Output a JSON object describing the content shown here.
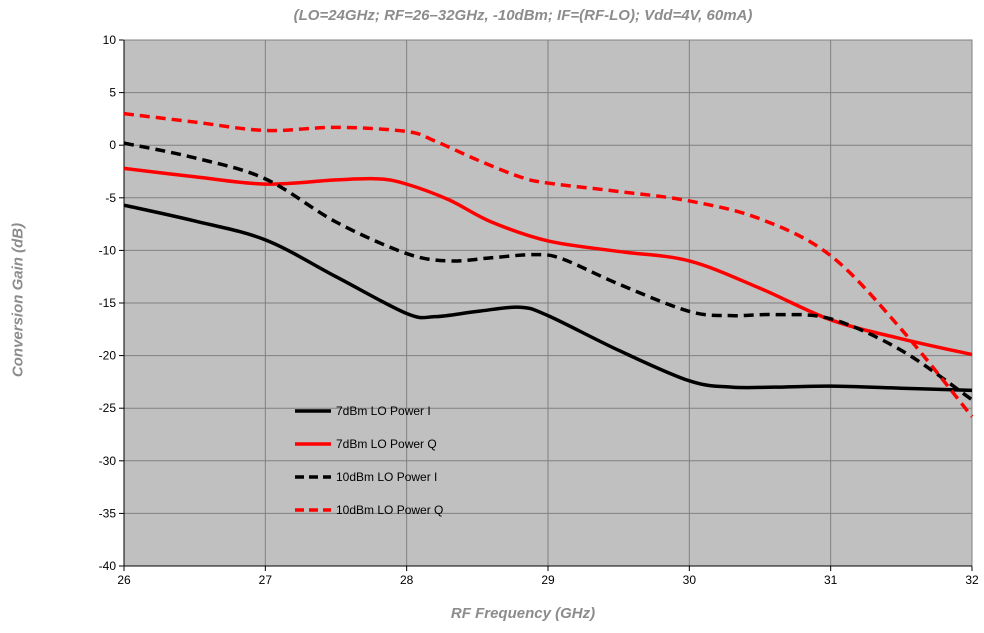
{
  "chart_data": {
    "type": "line",
    "title": "(LO=24GHz; RF=26–32GHz, -10dBm; IF=(RF-LO); Vdd=4V, 60mA)",
    "xlabel": "RF Frequency (GHz)",
    "ylabel": "Conversion Gain (dB)",
    "xlim": [
      26,
      32
    ],
    "ylim": [
      -40,
      10
    ],
    "xticks": [
      "26",
      "27",
      "28",
      "29",
      "30",
      "31",
      "32"
    ],
    "yticks": [
      "10",
      "5",
      "0",
      "-5",
      "-10",
      "-15",
      "-20",
      "-25",
      "-30",
      "-35",
      "-40"
    ],
    "grid": true,
    "legend_position": "bottom-left",
    "plot_background": "#c0c0c0",
    "series": [
      {
        "name": "7dBm LO Power I",
        "color": "#000000",
        "dashed": false,
        "x": [
          26,
          26.5,
          27,
          27.5,
          28,
          28.2,
          28.5,
          28.8,
          29,
          29.5,
          30,
          30.3,
          30.6,
          31,
          31.5,
          32
        ],
        "y": [
          -5.7,
          -7.2,
          -9,
          -12.5,
          -16,
          -16.3,
          -15.8,
          -15.4,
          -16.2,
          -19.5,
          -22.4,
          -23,
          -23,
          -22.9,
          -23.1,
          -23.3
        ]
      },
      {
        "name": "7dBm LO Power Q",
        "color": "#ff0000",
        "dashed": false,
        "x": [
          26,
          26.5,
          27,
          27.5,
          27.8,
          28,
          28.3,
          28.6,
          29,
          29.5,
          30,
          30.5,
          31,
          31.5,
          32
        ],
        "y": [
          -2.2,
          -3,
          -3.7,
          -3.3,
          -3.2,
          -3.7,
          -5.2,
          -7.3,
          -9.1,
          -10.1,
          -11,
          -13.6,
          -16.6,
          -18.4,
          -19.9
        ]
      },
      {
        "name": "10dBm LO Power I",
        "color": "#000000",
        "dashed": true,
        "x": [
          26,
          26.5,
          27,
          27.5,
          28,
          28.3,
          28.6,
          28.9,
          29.1,
          29.5,
          30,
          30.3,
          30.6,
          31,
          31.5,
          32
        ],
        "y": [
          0.2,
          -1.2,
          -3.2,
          -7.3,
          -10.3,
          -11,
          -10.7,
          -10.4,
          -10.8,
          -13.2,
          -15.8,
          -16.2,
          -16.1,
          -16.5,
          -19.5,
          -24.2
        ]
      },
      {
        "name": "10dBm LO Power Q",
        "color": "#ff0000",
        "dashed": true,
        "x": [
          26,
          26.5,
          27,
          27.5,
          28,
          28.2,
          28.5,
          28.8,
          29,
          29.5,
          30,
          30.5,
          31,
          31.5,
          32
        ],
        "y": [
          3,
          2.2,
          1.4,
          1.7,
          1.3,
          0.4,
          -1.4,
          -3,
          -3.6,
          -4.4,
          -5.3,
          -7,
          -10.5,
          -17.5,
          -25.8
        ]
      }
    ]
  }
}
